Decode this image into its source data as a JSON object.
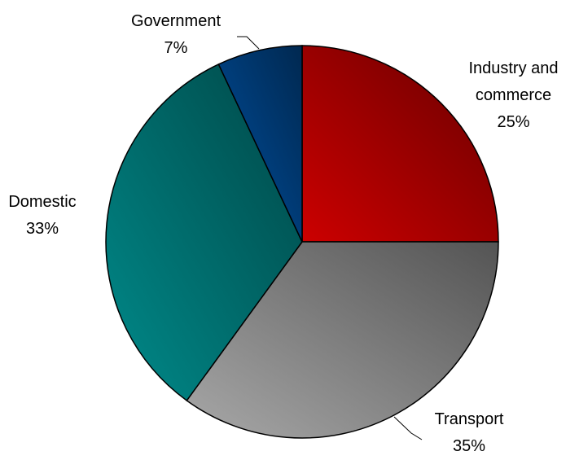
{
  "chart_data": {
    "type": "pie",
    "categories": [
      "Industry and commerce",
      "Transport",
      "Domestic",
      "Government"
    ],
    "values": [
      25,
      35,
      33,
      7
    ],
    "value_labels": [
      "25%",
      "35%",
      "33%",
      "7%"
    ],
    "colors": [
      "#cc0000",
      "#a8a8a8",
      "#008b8b",
      "#0050a0"
    ]
  }
}
